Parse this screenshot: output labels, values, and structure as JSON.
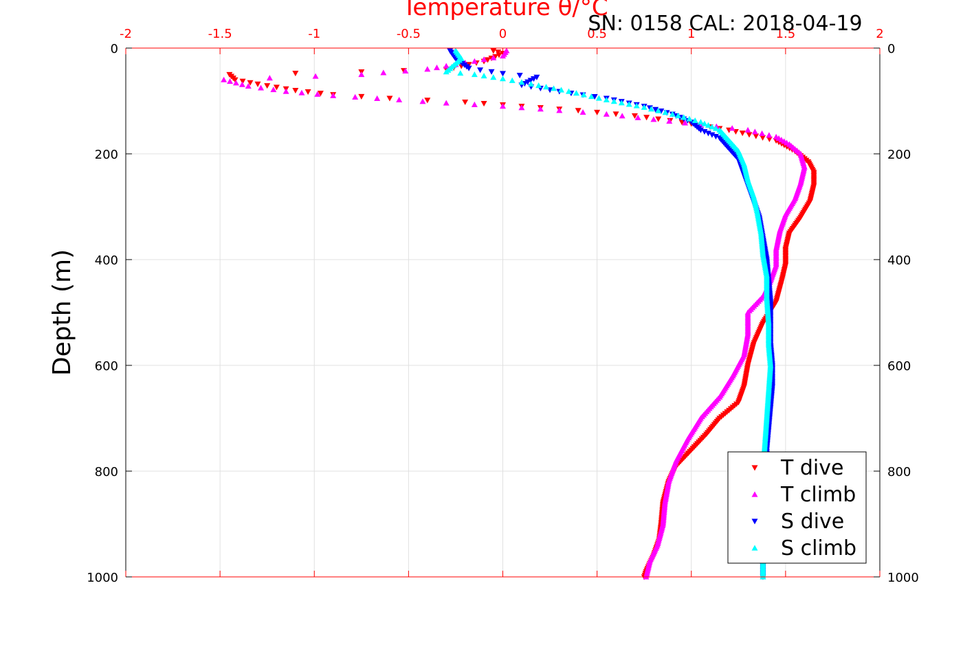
{
  "chart_data": {
    "type": "scatter",
    "title": "Temperature θ/°C",
    "subtitle": "SN: 0158  CAL: 2018-04-19",
    "ylabel": "Depth (m)",
    "xlim": [
      -2,
      2
    ],
    "ylim": [
      0,
      1000
    ],
    "y_reversed": true,
    "grid": true,
    "x_ticks": [
      "-2",
      "-1.5",
      "-1",
      "-0.5",
      "0",
      "0.5",
      "1",
      "1.5",
      "2"
    ],
    "y_ticks": [
      "0",
      "200",
      "400",
      "600",
      "800",
      "1000"
    ],
    "legend_placement": "bottom-right",
    "colors": {
      "axis_top": "#ff0000",
      "grid": "#e0e0e0"
    },
    "series": [
      {
        "name": "T dive",
        "marker": "triangle-down",
        "color": "#ff0000",
        "points": [
          [
            -0.05,
            5
          ],
          [
            0.0,
            10
          ],
          [
            -0.1,
            25
          ],
          [
            -0.3,
            40
          ],
          [
            -0.75,
            45
          ],
          [
            -1.45,
            50
          ],
          [
            -1.42,
            60
          ],
          [
            -1.3,
            68
          ],
          [
            -1.1,
            80
          ],
          [
            -0.9,
            88
          ],
          [
            -0.6,
            95
          ],
          [
            -0.2,
            102
          ],
          [
            0.1,
            110
          ],
          [
            0.4,
            118
          ],
          [
            0.7,
            128
          ],
          [
            0.95,
            140
          ],
          [
            1.2,
            155
          ],
          [
            1.45,
            175
          ],
          [
            1.55,
            195
          ],
          [
            1.62,
            215
          ],
          [
            1.65,
            235
          ],
          [
            1.65,
            260
          ],
          [
            1.63,
            290
          ],
          [
            1.58,
            320
          ],
          [
            1.52,
            350
          ],
          [
            1.5,
            380
          ],
          [
            1.5,
            410
          ],
          [
            1.48,
            440
          ],
          [
            1.45,
            480
          ],
          [
            1.38,
            520
          ],
          [
            1.33,
            560
          ],
          [
            1.3,
            600
          ],
          [
            1.28,
            640
          ],
          [
            1.25,
            670
          ],
          [
            1.15,
            700
          ],
          [
            1.08,
            730
          ],
          [
            1.0,
            760
          ],
          [
            0.92,
            790
          ],
          [
            0.88,
            820
          ],
          [
            0.85,
            860
          ],
          [
            0.84,
            900
          ],
          [
            0.83,
            930
          ],
          [
            0.8,
            960
          ],
          [
            0.76,
            990
          ],
          [
            0.75,
            1000
          ]
        ]
      },
      {
        "name": "T climb",
        "marker": "triangle-up",
        "color": "#ff00ff",
        "points": [
          [
            0.02,
            5
          ],
          [
            0.0,
            15
          ],
          [
            -0.15,
            25
          ],
          [
            -0.4,
            40
          ],
          [
            -0.75,
            50
          ],
          [
            -1.48,
            60
          ],
          [
            -1.35,
            72
          ],
          [
            -1.15,
            82
          ],
          [
            -0.9,
            90
          ],
          [
            -0.55,
            98
          ],
          [
            -0.3,
            104
          ],
          [
            0.0,
            110
          ],
          [
            0.3,
            118
          ],
          [
            0.55,
            125
          ],
          [
            0.8,
            135
          ],
          [
            1.05,
            145
          ],
          [
            1.3,
            155
          ],
          [
            1.45,
            168
          ],
          [
            1.52,
            182
          ],
          [
            1.58,
            200
          ],
          [
            1.6,
            225
          ],
          [
            1.58,
            255
          ],
          [
            1.55,
            285
          ],
          [
            1.5,
            315
          ],
          [
            1.47,
            345
          ],
          [
            1.45,
            380
          ],
          [
            1.45,
            410
          ],
          [
            1.42,
            440
          ],
          [
            1.38,
            470
          ],
          [
            1.3,
            500
          ],
          [
            1.3,
            540
          ],
          [
            1.28,
            580
          ],
          [
            1.22,
            620
          ],
          [
            1.15,
            660
          ],
          [
            1.05,
            700
          ],
          [
            0.98,
            740
          ],
          [
            0.92,
            780
          ],
          [
            0.88,
            820
          ],
          [
            0.86,
            860
          ],
          [
            0.85,
            900
          ],
          [
            0.82,
            940
          ],
          [
            0.78,
            970
          ],
          [
            0.76,
            1000
          ]
        ]
      },
      {
        "name": "S dive",
        "marker": "triangle-down",
        "color": "#0000ff",
        "points": [
          [
            -0.28,
            5
          ],
          [
            -0.25,
            20
          ],
          [
            -0.18,
            38
          ],
          [
            0.0,
            48
          ],
          [
            0.18,
            55
          ],
          [
            0.1,
            70
          ],
          [
            0.3,
            82
          ],
          [
            0.55,
            95
          ],
          [
            0.75,
            110
          ],
          [
            0.9,
            125
          ],
          [
            1.0,
            140
          ],
          [
            1.05,
            155
          ],
          [
            1.15,
            170
          ],
          [
            1.2,
            190
          ],
          [
            1.25,
            210
          ],
          [
            1.27,
            230
          ],
          [
            1.3,
            260
          ],
          [
            1.33,
            290
          ],
          [
            1.36,
            320
          ],
          [
            1.38,
            360
          ],
          [
            1.4,
            400
          ],
          [
            1.41,
            440
          ],
          [
            1.42,
            480
          ],
          [
            1.42,
            520
          ],
          [
            1.42,
            560
          ],
          [
            1.43,
            600
          ],
          [
            1.43,
            640
          ],
          [
            1.42,
            680
          ],
          [
            1.41,
            720
          ],
          [
            1.4,
            760
          ],
          [
            1.4,
            800
          ],
          [
            1.39,
            850
          ],
          [
            1.38,
            900
          ],
          [
            1.38,
            950
          ],
          [
            1.38,
            1000
          ]
        ]
      },
      {
        "name": "S climb",
        "marker": "triangle-up",
        "color": "#00ffff",
        "points": [
          [
            -0.25,
            5
          ],
          [
            -0.22,
            20
          ],
          [
            -0.3,
            45
          ],
          [
            -0.15,
            50
          ],
          [
            0.0,
            58
          ],
          [
            0.15,
            68
          ],
          [
            0.35,
            82
          ],
          [
            0.55,
            98
          ],
          [
            0.75,
            112
          ],
          [
            0.9,
            125
          ],
          [
            1.05,
            140
          ],
          [
            1.15,
            155
          ],
          [
            1.2,
            175
          ],
          [
            1.25,
            195
          ],
          [
            1.28,
            220
          ],
          [
            1.3,
            250
          ],
          [
            1.33,
            280
          ],
          [
            1.35,
            310
          ],
          [
            1.37,
            350
          ],
          [
            1.38,
            390
          ],
          [
            1.4,
            430
          ],
          [
            1.4,
            470
          ],
          [
            1.41,
            520
          ],
          [
            1.41,
            560
          ],
          [
            1.42,
            600
          ],
          [
            1.41,
            650
          ],
          [
            1.4,
            700
          ],
          [
            1.39,
            750
          ],
          [
            1.38,
            800
          ],
          [
            1.38,
            850
          ],
          [
            1.38,
            900
          ],
          [
            1.38,
            950
          ],
          [
            1.38,
            1000
          ]
        ]
      }
    ]
  }
}
